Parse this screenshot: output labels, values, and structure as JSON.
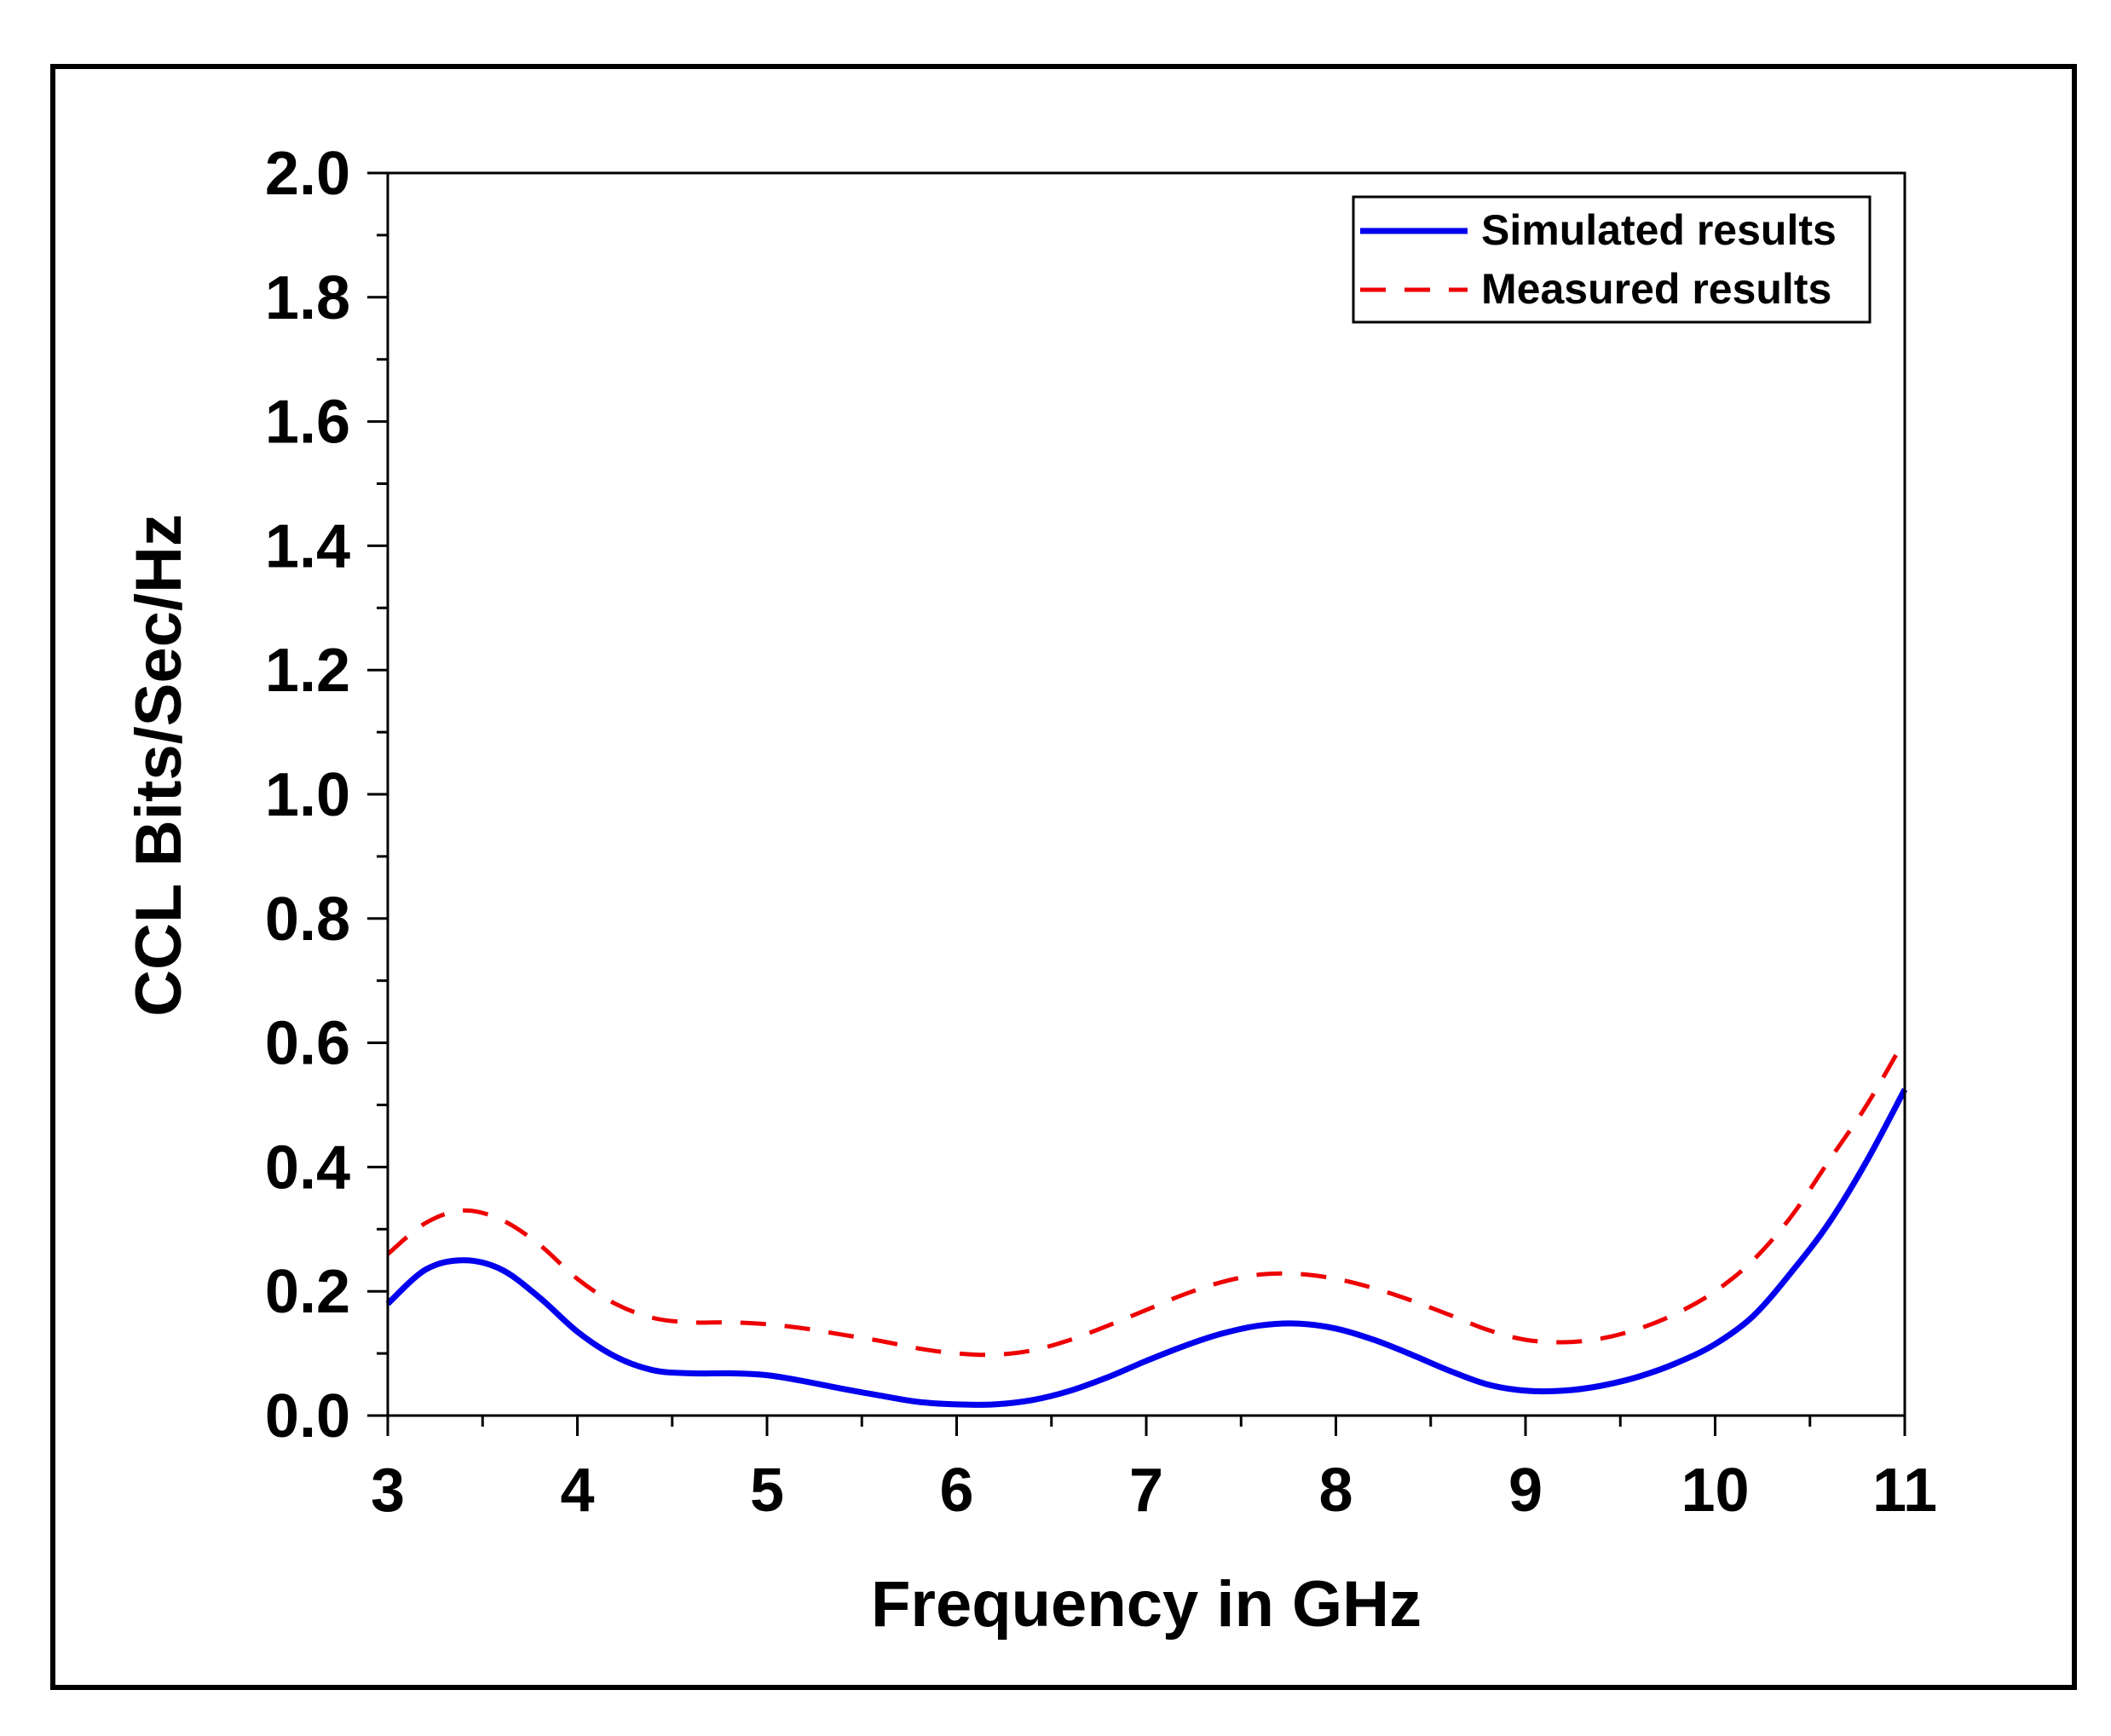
{
  "chart_data": {
    "type": "line",
    "title": "",
    "xlabel": "Frequency in GHz",
    "ylabel": "CCL Bits/Sec/Hz",
    "xlim": [
      3,
      11
    ],
    "ylim": [
      0,
      2.0
    ],
    "x_ticks": [
      "3",
      "4",
      "5",
      "6",
      "7",
      "8",
      "9",
      "10",
      "11"
    ],
    "y_ticks": [
      "0.0",
      "0.2",
      "0.4",
      "0.6",
      "0.8",
      "1.0",
      "1.2",
      "1.4",
      "1.6",
      "1.8",
      "2.0"
    ],
    "x_tick_values": [
      3,
      4,
      5,
      6,
      7,
      8,
      9,
      10,
      11
    ],
    "y_tick_values": [
      0.0,
      0.2,
      0.4,
      0.6,
      0.8,
      1.0,
      1.2,
      1.4,
      1.6,
      1.8,
      2.0
    ],
    "legend_position": "top-right",
    "grid": false,
    "series": [
      {
        "name": "Simulated results",
        "color": "#0000ee",
        "style": "solid",
        "x": [
          3.0,
          3.2,
          3.4,
          3.6,
          3.8,
          4.0,
          4.2,
          4.4,
          4.6,
          4.8,
          5.0,
          5.2,
          5.4,
          5.6,
          5.8,
          6.0,
          6.2,
          6.4,
          6.6,
          6.8,
          7.0,
          7.2,
          7.4,
          7.6,
          7.8,
          8.0,
          8.2,
          8.4,
          8.6,
          8.8,
          9.0,
          9.2,
          9.4,
          9.6,
          9.8,
          10.0,
          10.2,
          10.4,
          10.6,
          10.8,
          11.0
        ],
        "values": [
          0.18,
          0.235,
          0.25,
          0.235,
          0.19,
          0.135,
          0.095,
          0.073,
          0.068,
          0.068,
          0.065,
          0.055,
          0.043,
          0.032,
          0.022,
          0.018,
          0.018,
          0.025,
          0.04,
          0.062,
          0.088,
          0.112,
          0.132,
          0.145,
          0.148,
          0.14,
          0.122,
          0.098,
          0.072,
          0.05,
          0.04,
          0.04,
          0.048,
          0.063,
          0.085,
          0.115,
          0.16,
          0.23,
          0.31,
          0.41,
          0.525
        ]
      },
      {
        "name": "Measured results",
        "color": "#ee0000",
        "style": "dashed",
        "x": [
          3.0,
          3.2,
          3.4,
          3.6,
          3.8,
          4.0,
          4.2,
          4.4,
          4.6,
          4.8,
          5.0,
          5.2,
          5.4,
          5.6,
          5.8,
          6.0,
          6.2,
          6.4,
          6.6,
          6.8,
          7.0,
          7.2,
          7.4,
          7.6,
          7.8,
          8.0,
          8.2,
          8.4,
          8.6,
          8.8,
          9.0,
          9.2,
          9.4,
          9.6,
          9.8,
          10.0,
          10.2,
          10.4,
          10.6,
          10.8,
          11.0
        ],
        "values": [
          0.26,
          0.31,
          0.33,
          0.315,
          0.275,
          0.22,
          0.18,
          0.157,
          0.15,
          0.15,
          0.147,
          0.14,
          0.13,
          0.12,
          0.108,
          0.1,
          0.098,
          0.105,
          0.122,
          0.145,
          0.17,
          0.195,
          0.215,
          0.227,
          0.228,
          0.22,
          0.205,
          0.185,
          0.162,
          0.138,
          0.122,
          0.118,
          0.124,
          0.14,
          0.165,
          0.2,
          0.25,
          0.32,
          0.41,
          0.5,
          0.605
        ]
      }
    ]
  }
}
